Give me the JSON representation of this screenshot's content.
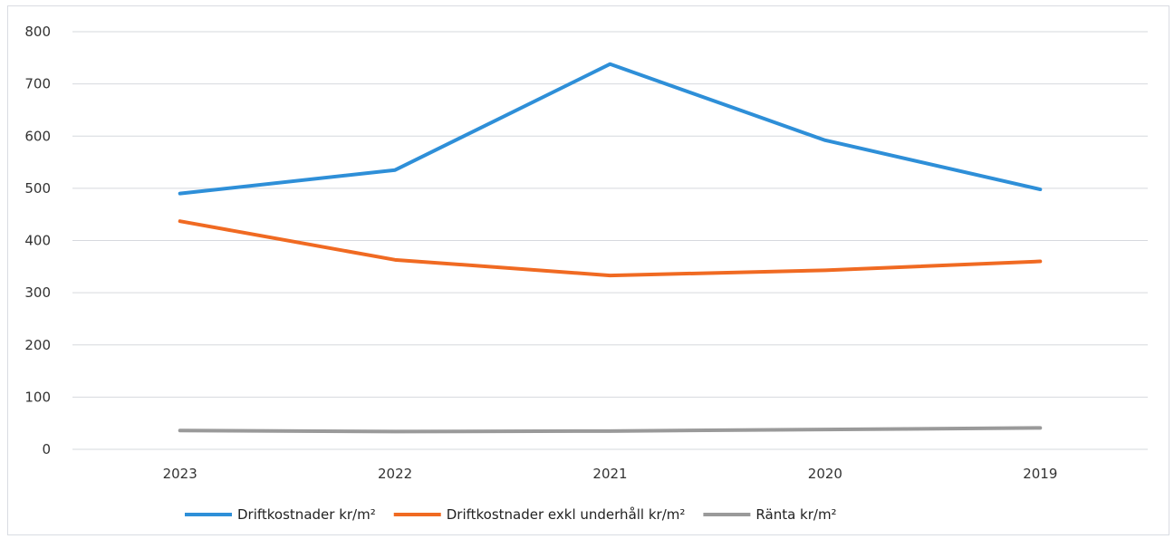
{
  "chart_data": {
    "type": "line",
    "title": "",
    "xlabel": "",
    "ylabel": "",
    "categories": [
      "2023",
      "2022",
      "2021",
      "2020",
      "2019"
    ],
    "ylim": [
      0,
      800
    ],
    "yticks": [
      0,
      100,
      200,
      300,
      400,
      500,
      600,
      700,
      800
    ],
    "grid": true,
    "legend_position": "bottom",
    "series": [
      {
        "name": "Driftkostnader kr/m²",
        "color": "#2e8fd8",
        "values": [
          490,
          535,
          738,
          592,
          498
        ]
      },
      {
        "name": "Driftkostnader exkl underhåll kr/m²",
        "color": "#f06a22",
        "values": [
          437,
          363,
          333,
          343,
          360
        ]
      },
      {
        "name": "Ränta kr/m²",
        "color": "#9a9a9a",
        "values": [
          36,
          34,
          35,
          38,
          41
        ]
      }
    ]
  }
}
